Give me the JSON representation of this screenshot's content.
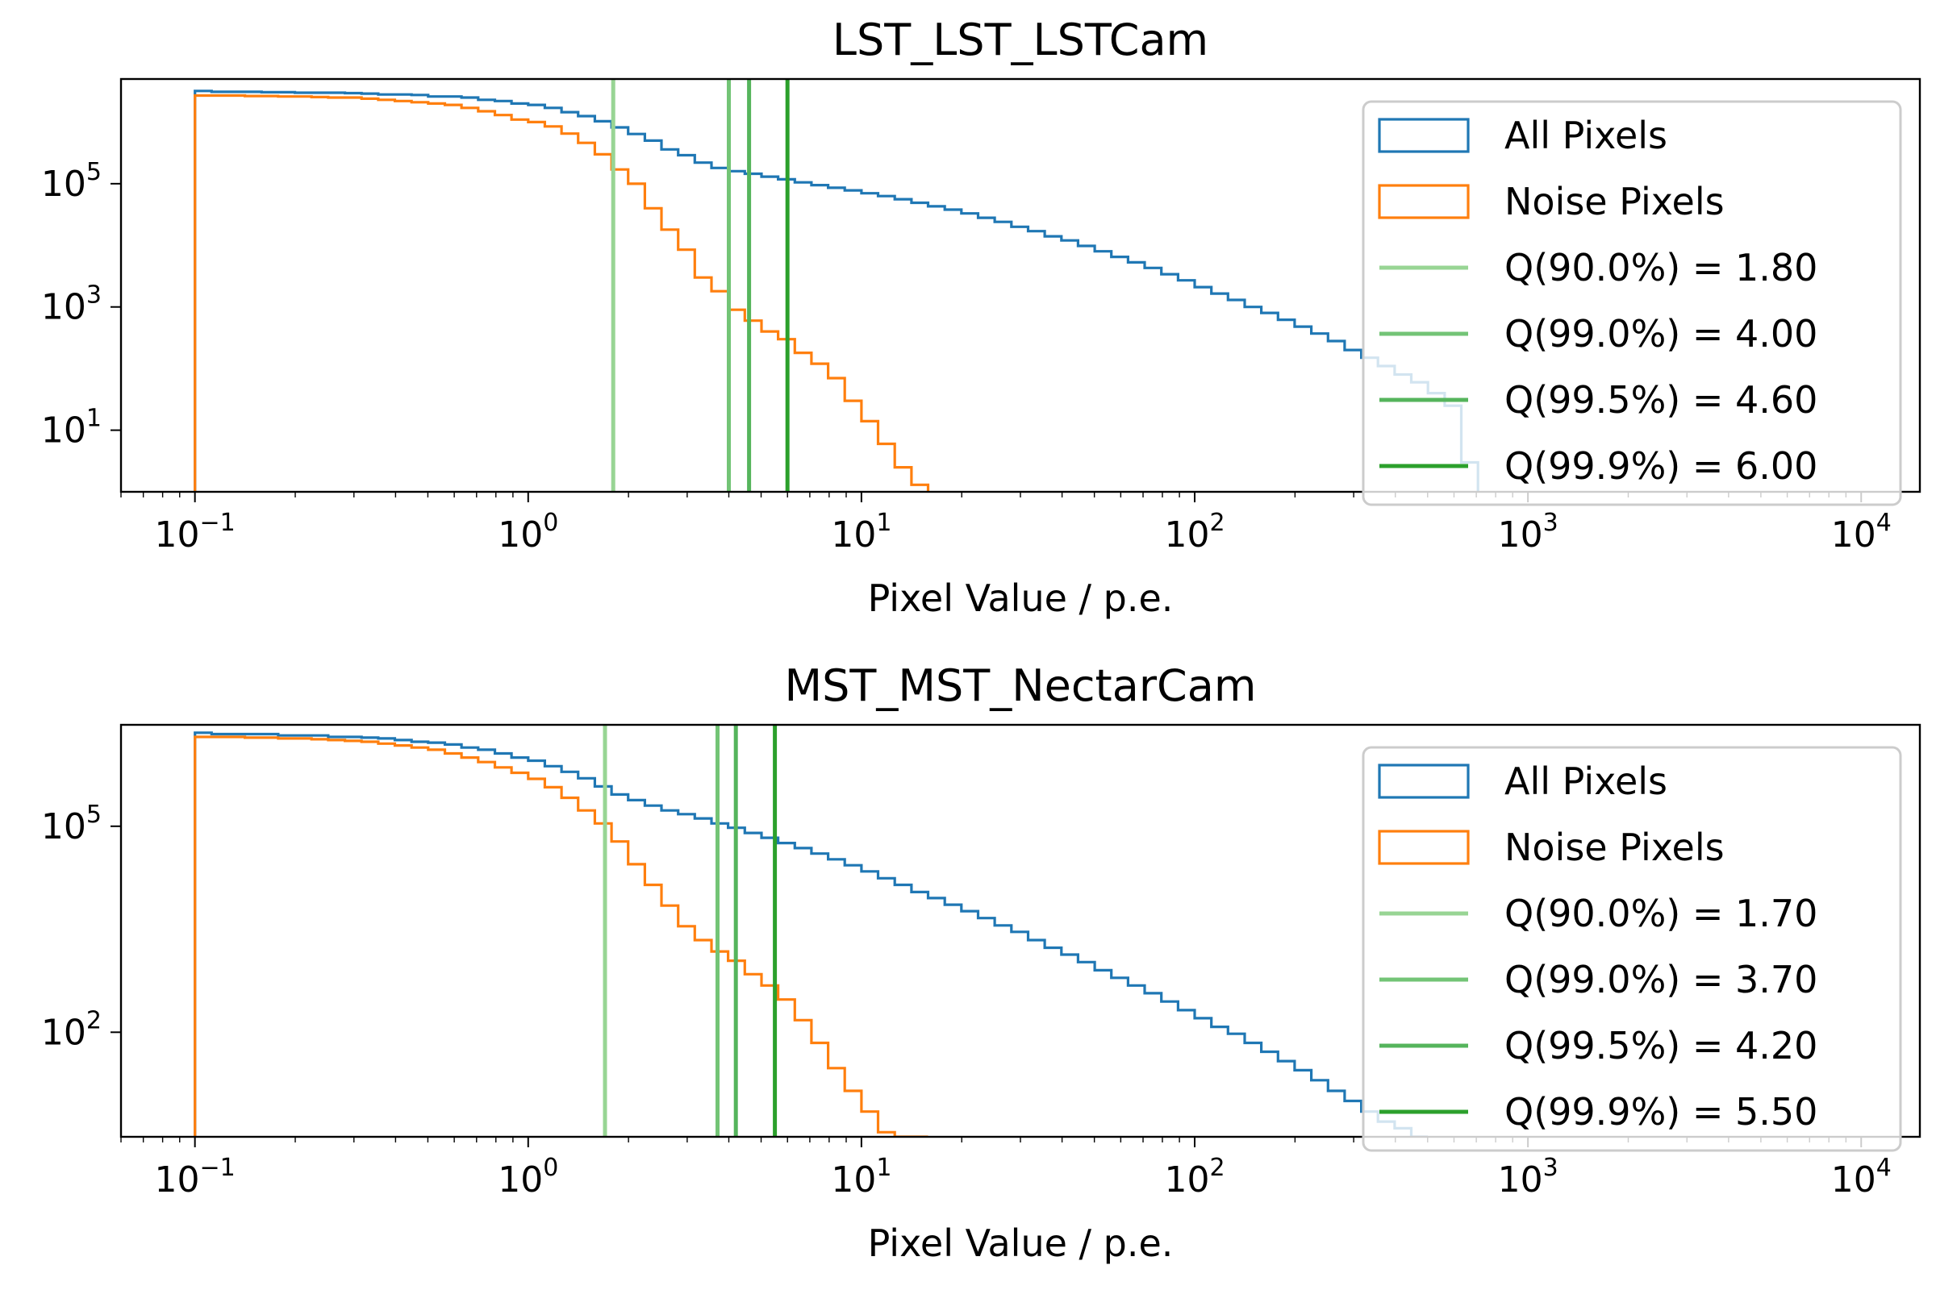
{
  "chart_data": [
    {
      "type": "histogram",
      "title": "LST_LST_LSTCam",
      "xlabel": "Pixel Value / p.e.",
      "ylabel": "",
      "xscale": "log",
      "yscale": "log",
      "xlim": [
        0.06,
        15000
      ],
      "ylim": [
        1,
        5000000
      ],
      "xticks": [
        {
          "value": 0.1,
          "base": "10",
          "exp": "−1"
        },
        {
          "value": 1,
          "base": "10",
          "exp": "0"
        },
        {
          "value": 10,
          "base": "10",
          "exp": "1"
        },
        {
          "value": 100,
          "base": "10",
          "exp": "2"
        },
        {
          "value": 1000,
          "base": "10",
          "exp": "3"
        },
        {
          "value": 10000,
          "base": "10",
          "exp": "4"
        }
      ],
      "yticks": [
        {
          "value": 10,
          "base": "10",
          "exp": "1"
        },
        {
          "value": 1000,
          "base": "10",
          "exp": "3"
        },
        {
          "value": 100000,
          "base": "10",
          "exp": "5"
        }
      ],
      "legend_position": "right",
      "series": [
        {
          "name": "All Pixels",
          "color": "#1f77b4",
          "bins_start": 0.1,
          "bins_per_decade": 20,
          "values": [
            3200000,
            3100000,
            3100000,
            3100000,
            3050000,
            3050000,
            3000000,
            3000000,
            3000000,
            2950000,
            2900000,
            2800000,
            2800000,
            2750000,
            2600000,
            2600000,
            2500000,
            2300000,
            2200000,
            2000000,
            1900000,
            1700000,
            1450000,
            1250000,
            1030000,
            820000,
            640000,
            500000,
            360000,
            290000,
            220000,
            180000,
            160000,
            145000,
            130000,
            118000,
            105000,
            95000,
            86000,
            78000,
            70000,
            63000,
            56000,
            49000,
            43000,
            38000,
            33000,
            28000,
            24000,
            20000,
            17000,
            14000,
            12000,
            9800,
            8000,
            6500,
            5300,
            4300,
            3400,
            2700,
            2100,
            1650,
            1300,
            1000,
            800,
            620,
            480,
            370,
            280,
            200,
            150,
            110,
            80,
            60,
            40,
            25,
            3
          ]
        },
        {
          "name": "Noise Pixels",
          "color": "#ff7f0e",
          "bins_start": 0.1,
          "bins_per_decade": 20,
          "values": [
            2700000,
            2700000,
            2700000,
            2650000,
            2650000,
            2600000,
            2600000,
            2550000,
            2500000,
            2500000,
            2400000,
            2300000,
            2200000,
            2100000,
            2000000,
            1900000,
            1700000,
            1500000,
            1300000,
            1100000,
            1000000,
            850000,
            650000,
            460000,
            300000,
            170000,
            100000,
            40000,
            18000,
            8500,
            3000,
            1800,
            900,
            600,
            400,
            300,
            180,
            120,
            70,
            30,
            14,
            6,
            2.5,
            1.3
          ]
        }
      ],
      "quantiles": [
        {
          "label": "Q(90.0%) = 1.80",
          "value": 1.8,
          "color": "#98d594"
        },
        {
          "label": "Q(99.0%) = 4.00",
          "value": 4.0,
          "color": "#73c476"
        },
        {
          "label": "Q(99.5%) = 4.60",
          "value": 4.6,
          "color": "#55b45c"
        },
        {
          "label": "Q(99.9%) = 6.00",
          "value": 6.0,
          "color": "#2ca02c"
        }
      ]
    },
    {
      "type": "histogram",
      "title": "MST_MST_NectarCam",
      "xlabel": "Pixel Value / p.e.",
      "ylabel": "",
      "xscale": "log",
      "yscale": "log",
      "xlim": [
        0.06,
        15000
      ],
      "ylim": [
        3,
        3000000
      ],
      "xticks": [
        {
          "value": 0.1,
          "base": "10",
          "exp": "−1"
        },
        {
          "value": 1,
          "base": "10",
          "exp": "0"
        },
        {
          "value": 10,
          "base": "10",
          "exp": "1"
        },
        {
          "value": 100,
          "base": "10",
          "exp": "2"
        },
        {
          "value": 1000,
          "base": "10",
          "exp": "3"
        },
        {
          "value": 10000,
          "base": "10",
          "exp": "4"
        }
      ],
      "yticks": [
        {
          "value": 100,
          "base": "10",
          "exp": "2"
        },
        {
          "value": 100000,
          "base": "10",
          "exp": "5"
        }
      ],
      "legend_position": "right",
      "series": [
        {
          "name": "All Pixels",
          "color": "#1f77b4",
          "bins_start": 0.1,
          "bins_per_decade": 20,
          "values": [
            2300000,
            2200000,
            2200000,
            2200000,
            2200000,
            2100000,
            2100000,
            2100000,
            2000000,
            2000000,
            1950000,
            1900000,
            1800000,
            1700000,
            1650000,
            1550000,
            1400000,
            1300000,
            1150000,
            1000000,
            900000,
            750000,
            620000,
            500000,
            380000,
            290000,
            240000,
            200000,
            170000,
            150000,
            130000,
            110000,
            95000,
            80000,
            68000,
            57000,
            48000,
            40000,
            33000,
            27000,
            22000,
            17500,
            14000,
            11000,
            9000,
            7200,
            5800,
            4600,
            3600,
            2900,
            2200,
            1700,
            1350,
            1050,
            800,
            620,
            480,
            370,
            280,
            210,
            160,
            120,
            95,
            70,
            52,
            38,
            28,
            20,
            14,
            10,
            7,
            5,
            4,
            3
          ]
        },
        {
          "name": "Noise Pixels",
          "color": "#ff7f0e",
          "bins_start": 0.1,
          "bins_per_decade": 20,
          "values": [
            2000000,
            2000000,
            2000000,
            1950000,
            1950000,
            1900000,
            1900000,
            1850000,
            1800000,
            1750000,
            1700000,
            1600000,
            1500000,
            1400000,
            1300000,
            1150000,
            1000000,
            860000,
            720000,
            600000,
            490000,
            370000,
            260000,
            170000,
            110000,
            60000,
            28000,
            14000,
            7000,
            3500,
            2200,
            1500,
            1100,
            700,
            480,
            300,
            150,
            70,
            30,
            14,
            7,
            3.5,
            3,
            3
          ]
        }
      ],
      "quantiles": [
        {
          "label": "Q(90.0%) = 1.70",
          "value": 1.7,
          "color": "#98d594"
        },
        {
          "label": "Q(99.0%) = 3.70",
          "value": 3.7,
          "color": "#73c476"
        },
        {
          "label": "Q(99.5%) = 4.20",
          "value": 4.2,
          "color": "#55b45c"
        },
        {
          "label": "Q(99.9%) = 5.50",
          "value": 5.5,
          "color": "#2ca02c"
        }
      ]
    }
  ]
}
